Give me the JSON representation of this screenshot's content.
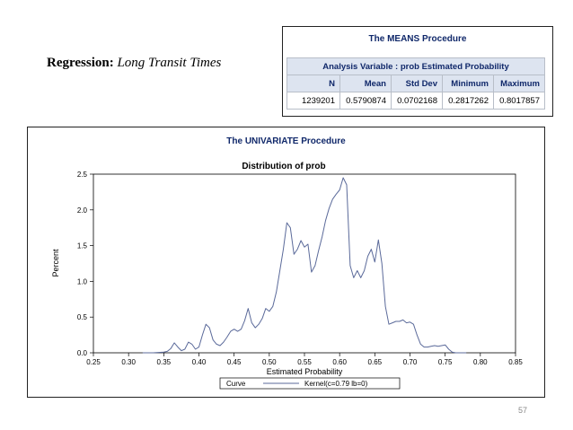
{
  "slide": {
    "title_bold": "Regression:",
    "title_italic": "Long Transit Times",
    "page_number": "57"
  },
  "means": {
    "procedure": "The MEANS Procedure",
    "caption": "Analysis Variable : prob Estimated Probability",
    "headers": [
      "N",
      "Mean",
      "Std Dev",
      "Minimum",
      "Maximum"
    ],
    "values": [
      "1239201",
      "0.5790874",
      "0.0702168",
      "0.2817262",
      "0.8017857"
    ]
  },
  "univariate": {
    "procedure": "The UNIVARIATE Procedure"
  },
  "colors": {
    "line": "#5b6a9a",
    "header_text": "#10286a",
    "header_fill": "#dde4f0"
  },
  "chart_data": {
    "type": "line",
    "title": "Distribution of prob",
    "xlabel": "Estimated Probability",
    "ylabel": "Percent",
    "xlim": [
      0.25,
      0.85
    ],
    "ylim": [
      0,
      2.5
    ],
    "xticks": [
      "0.25",
      "0.30",
      "0.35",
      "0.40",
      "0.45",
      "0.50",
      "0.55",
      "0.60",
      "0.65",
      "0.70",
      "0.75",
      "0.80",
      "0.85"
    ],
    "yticks": [
      "0.0",
      "0.5",
      "1.0",
      "1.5",
      "2.0",
      "2.5"
    ],
    "legend": {
      "label": "Curve",
      "entry": "Kernel(c=0.79 lb=0)",
      "position": "bottom"
    },
    "series": [
      {
        "x": [
          0.32,
          0.335,
          0.35,
          0.355,
          0.36,
          0.365,
          0.37,
          0.375,
          0.38,
          0.385,
          0.39,
          0.395,
          0.4,
          0.405,
          0.41,
          0.415,
          0.42,
          0.425,
          0.43,
          0.435,
          0.44,
          0.445,
          0.45,
          0.455,
          0.46,
          0.465,
          0.47,
          0.475,
          0.48,
          0.485,
          0.49,
          0.495,
          0.5,
          0.505,
          0.51,
          0.515,
          0.52,
          0.525,
          0.53,
          0.535,
          0.54,
          0.545,
          0.55,
          0.555,
          0.56,
          0.565,
          0.57,
          0.575,
          0.58,
          0.585,
          0.59,
          0.595,
          0.6,
          0.605,
          0.61,
          0.615,
          0.62,
          0.625,
          0.63,
          0.635,
          0.64,
          0.645,
          0.65,
          0.655,
          0.66,
          0.665,
          0.67,
          0.675,
          0.68,
          0.685,
          0.69,
          0.695,
          0.7,
          0.705,
          0.71,
          0.715,
          0.72,
          0.725,
          0.73,
          0.735,
          0.74,
          0.745,
          0.75,
          0.755,
          0.76,
          0.765,
          0.77,
          0.78
        ],
        "y": [
          0.0,
          0.0,
          0.01,
          0.02,
          0.06,
          0.14,
          0.08,
          0.03,
          0.05,
          0.15,
          0.12,
          0.05,
          0.08,
          0.25,
          0.4,
          0.35,
          0.18,
          0.12,
          0.1,
          0.15,
          0.22,
          0.3,
          0.33,
          0.3,
          0.33,
          0.45,
          0.62,
          0.42,
          0.35,
          0.4,
          0.48,
          0.62,
          0.58,
          0.65,
          0.85,
          1.15,
          1.45,
          1.82,
          1.75,
          1.38,
          1.45,
          1.57,
          1.48,
          1.52,
          1.13,
          1.22,
          1.43,
          1.62,
          1.85,
          2.02,
          2.15,
          2.22,
          2.28,
          2.45,
          2.35,
          1.22,
          1.05,
          1.15,
          1.05,
          1.15,
          1.35,
          1.45,
          1.27,
          1.58,
          1.25,
          0.65,
          0.4,
          0.42,
          0.44,
          0.44,
          0.46,
          0.42,
          0.43,
          0.4,
          0.25,
          0.12,
          0.08,
          0.08,
          0.09,
          0.1,
          0.09,
          0.1,
          0.11,
          0.05,
          0.01,
          0.0,
          0.0,
          0.0
        ]
      }
    ]
  }
}
